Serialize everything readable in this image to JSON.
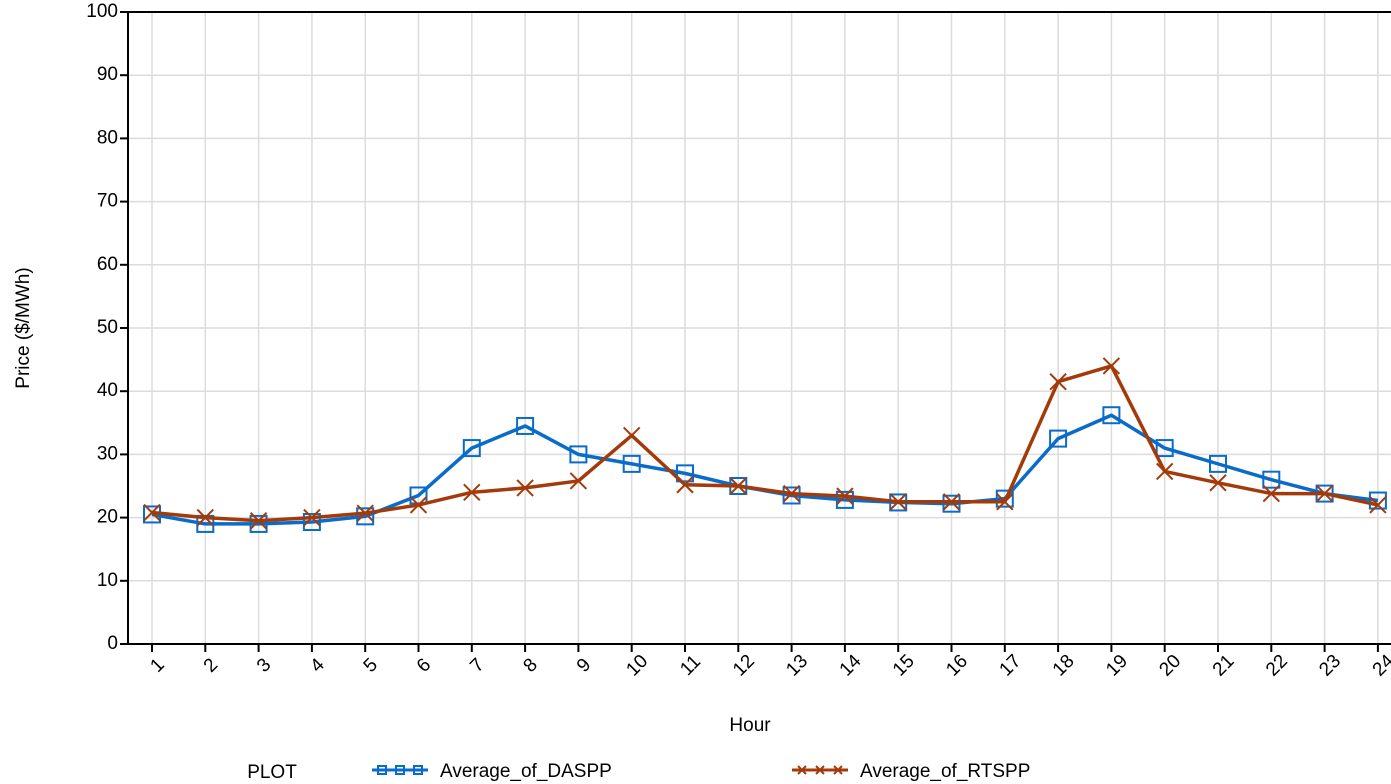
{
  "chart_data": {
    "type": "line",
    "x_label": "Hour",
    "y_label": "Price ($/MWh)",
    "legend_title": "PLOT",
    "categories": [
      "1",
      "2",
      "3",
      "4",
      "5",
      "6",
      "7",
      "8",
      "9",
      "10",
      "11",
      "12",
      "13",
      "14",
      "15",
      "16",
      "17",
      "18",
      "19",
      "20",
      "21",
      "22",
      "23",
      "24"
    ],
    "series": [
      {
        "name": "Average_of_DASPP",
        "color": "#0a6bc9",
        "marker": "square",
        "values": [
          20.5,
          19,
          19,
          19.3,
          20.2,
          23.5,
          31,
          34.5,
          30,
          28.5,
          27,
          25,
          23.5,
          22.8,
          22.4,
          22.2,
          23,
          32.5,
          36.2,
          31,
          28.5,
          26,
          23.8,
          22.7
        ]
      },
      {
        "name": "Average_of_RTSPP",
        "color": "#a33a0a",
        "marker": "x",
        "values": [
          20.8,
          20,
          19.5,
          20,
          20.7,
          22,
          24,
          24.7,
          25.8,
          33,
          25.2,
          25,
          23.8,
          23.4,
          22.5,
          22.5,
          22.5,
          41.5,
          44,
          27.3,
          25.5,
          23.8,
          23.8,
          22
        ]
      }
    ],
    "ylim": [
      0,
      100
    ],
    "yticks": [
      0,
      10,
      20,
      30,
      40,
      50,
      60,
      70,
      80,
      90,
      100
    ],
    "grid": true,
    "legend_position": "bottom"
  }
}
